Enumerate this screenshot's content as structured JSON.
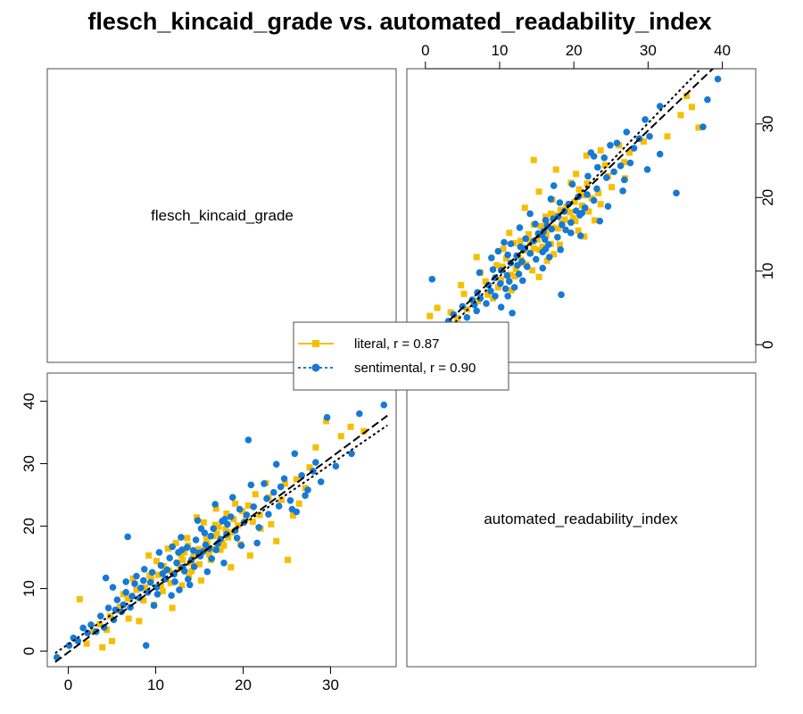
{
  "chart_data": {
    "type": "scatter",
    "title": "flesch_kincaid_grade vs. automated_readability_index",
    "variables": [
      "flesch_kincaid_grade",
      "automated_readability_index"
    ],
    "axes": {
      "flesch_kincaid_grade": {
        "ticks": [
          0,
          10,
          20,
          30
        ],
        "range": [
          -2.4,
          37.5
        ]
      },
      "automated_readability_index": {
        "ticks": [
          0,
          10,
          20,
          30,
          40
        ],
        "range": [
          -2.5,
          44.5
        ]
      }
    },
    "legend": {
      "placement": "center",
      "entries": [
        {
          "label": "literal, r = 0.87",
          "color": "#F7BE00",
          "marker": "square",
          "line": "solid"
        },
        {
          "label": "sentimental, r = 0.90",
          "color": "#1679D6",
          "marker": "circle",
          "line": "dotted"
        }
      ]
    },
    "series": [
      {
        "name": "literal, r = 0.87",
        "color": "#F7BE00",
        "marker": "square",
        "fit": {
          "slope": 1.038,
          "intercept": -0.2
        },
        "points": [
          [
            1.3,
            8.3
          ],
          [
            2.1,
            1.2
          ],
          [
            3.9,
            0.6
          ],
          [
            4.4,
            3.4
          ],
          [
            5.0,
            1.6
          ],
          [
            5.6,
            6.5
          ],
          [
            6.3,
            9.1
          ],
          [
            6.9,
            5.2
          ],
          [
            7.4,
            11.6
          ],
          [
            8.1,
            4.8
          ],
          [
            8.6,
            8.1
          ],
          [
            9.2,
            15.3
          ],
          [
            9.8,
            7.4
          ],
          [
            10.3,
            12.2
          ],
          [
            10.8,
            9.6
          ],
          [
            11.4,
            16.4
          ],
          [
            11.9,
            6.9
          ],
          [
            12.5,
            14.2
          ],
          [
            13.0,
            10.5
          ],
          [
            13.6,
            18.1
          ],
          [
            14.1,
            12.8
          ],
          [
            14.7,
            21.4
          ],
          [
            15.2,
            11.3
          ],
          [
            15.8,
            17.9
          ],
          [
            16.3,
            14.6
          ],
          [
            16.9,
            22.8
          ],
          [
            17.4,
            16.2
          ],
          [
            18.0,
            19.5
          ],
          [
            18.6,
            13.4
          ],
          [
            19.1,
            23.6
          ],
          [
            19.7,
            17.1
          ],
          [
            20.3,
            21.2
          ],
          [
            20.8,
            15.3
          ],
          [
            21.4,
            25.1
          ],
          [
            22.0,
            19.6
          ],
          [
            22.6,
            26.9
          ],
          [
            23.2,
            20.3
          ],
          [
            23.8,
            17.6
          ],
          [
            24.4,
            24.2
          ],
          [
            25.1,
            14.6
          ],
          [
            25.7,
            21.7
          ],
          [
            26.4,
            23.6
          ],
          [
            27.1,
            26.1
          ],
          [
            28.3,
            32.6
          ],
          [
            29.5,
            36.8
          ],
          [
            31.2,
            34.4
          ],
          [
            32.3,
            35.9
          ],
          [
            33.8,
            35.2
          ],
          [
            10.1,
            14.4
          ],
          [
            11.7,
            10.9
          ],
          [
            12.3,
            17.3
          ],
          [
            13.3,
            15.8
          ],
          [
            14.4,
            13.7
          ],
          [
            15.5,
            20.6
          ],
          [
            16.6,
            18.4
          ],
          [
            17.8,
            16.9
          ],
          [
            18.9,
            21.1
          ],
          [
            12.8,
            13.2
          ],
          [
            13.8,
            11.9
          ],
          [
            14.9,
            16.3
          ],
          [
            16.1,
            15.5
          ],
          [
            17.2,
            19.9
          ],
          [
            18.3,
            18.2
          ],
          [
            19.4,
            20.1
          ],
          [
            11.1,
            13.1
          ],
          [
            9.5,
            11.5
          ],
          [
            8.8,
            10.2
          ],
          [
            7.8,
            9.8
          ],
          [
            6.8,
            8.4
          ],
          [
            5.9,
            7.1
          ],
          [
            4.8,
            5.6
          ],
          [
            3.6,
            4.3
          ],
          [
            2.9,
            3.2
          ],
          [
            20.6,
            23.3
          ],
          [
            21.9,
            21.8
          ],
          [
            22.9,
            24.6
          ],
          [
            24.8,
            26.8
          ],
          [
            26.1,
            27.5
          ],
          [
            27.6,
            29.4
          ],
          [
            15.9,
            17.2
          ],
          [
            17.0,
            18.8
          ],
          [
            12.1,
            12.5
          ],
          [
            14.3,
            15.1
          ],
          [
            16.5,
            16.3
          ],
          [
            18.7,
            19.0
          ],
          [
            13.1,
            14.6
          ],
          [
            11.5,
            12.9
          ],
          [
            10.6,
            10.4
          ],
          [
            9.3,
            12.1
          ],
          [
            19.9,
            22.4
          ],
          [
            21.1,
            20.7
          ],
          [
            15.4,
            16.1
          ],
          [
            14.0,
            14.1
          ],
          [
            12.9,
            15.4
          ],
          [
            17.6,
            17.3
          ],
          [
            16.8,
            20.2
          ],
          [
            10.9,
            13.6
          ],
          [
            13.7,
            16.9
          ],
          [
            15.0,
            13.9
          ],
          [
            18.1,
            22.0
          ]
        ]
      },
      {
        "name": "sentimental, r = 0.90",
        "color": "#1679D6",
        "marker": "circle",
        "fit": {
          "slope": 0.96,
          "intercept": 1.1
        },
        "points": [
          [
            -1.3,
            -1.0
          ],
          [
            0.1,
            0.9
          ],
          [
            0.6,
            2.1
          ],
          [
            1.1,
            1.6
          ],
          [
            1.7,
            3.7
          ],
          [
            2.2,
            2.9
          ],
          [
            2.6,
            4.2
          ],
          [
            3.2,
            3.1
          ],
          [
            3.7,
            5.6
          ],
          [
            4.1,
            3.8
          ],
          [
            4.6,
            6.9
          ],
          [
            5.2,
            5.0
          ],
          [
            5.6,
            8.2
          ],
          [
            6.1,
            6.3
          ],
          [
            6.6,
            9.4
          ],
          [
            7.1,
            7.0
          ],
          [
            7.6,
            10.8
          ],
          [
            8.1,
            8.5
          ],
          [
            8.6,
            11.3
          ],
          [
            9.1,
            9.4
          ],
          [
            9.6,
            12.6
          ],
          [
            10.1,
            10.2
          ],
          [
            10.6,
            13.7
          ],
          [
            11.1,
            11.5
          ],
          [
            11.6,
            14.9
          ],
          [
            12.1,
            12.3
          ],
          [
            12.6,
            15.8
          ],
          [
            13.1,
            13.4
          ],
          [
            13.6,
            16.6
          ],
          [
            14.1,
            14.6
          ],
          [
            14.6,
            17.8
          ],
          [
            15.1,
            15.2
          ],
          [
            15.6,
            18.9
          ],
          [
            16.1,
            16.4
          ],
          [
            16.6,
            19.6
          ],
          [
            17.1,
            17.2
          ],
          [
            17.6,
            20.8
          ],
          [
            18.1,
            18.7
          ],
          [
            18.6,
            21.5
          ],
          [
            19.1,
            19.3
          ],
          [
            19.6,
            22.7
          ],
          [
            20.1,
            20.6
          ],
          [
            20.6,
            33.8
          ],
          [
            21.2,
            23.1
          ],
          [
            21.8,
            19.8
          ],
          [
            22.4,
            26.8
          ],
          [
            22.9,
            21.9
          ],
          [
            23.5,
            25.4
          ],
          [
            24.1,
            23.2
          ],
          [
            24.7,
            27.6
          ],
          [
            25.4,
            24.1
          ],
          [
            26.1,
            22.3
          ],
          [
            26.7,
            28.1
          ],
          [
            27.4,
            25.8
          ],
          [
            28.3,
            30.2
          ],
          [
            28.9,
            27.1
          ],
          [
            29.6,
            37.4
          ],
          [
            30.6,
            29.6
          ],
          [
            32.4,
            31.6
          ],
          [
            33.3,
            38.0
          ],
          [
            36.1,
            39.4
          ],
          [
            6.8,
            18.3
          ],
          [
            8.9,
            0.9
          ],
          [
            5.1,
            10.2
          ],
          [
            4.3,
            11.7
          ],
          [
            9.8,
            7.3
          ],
          [
            10.4,
            15.8
          ],
          [
            11.8,
            8.9
          ],
          [
            12.9,
            18.2
          ],
          [
            13.9,
            10.6
          ],
          [
            14.8,
            20.9
          ],
          [
            15.9,
            12.7
          ],
          [
            16.8,
            23.5
          ],
          [
            17.8,
            14.1
          ],
          [
            18.8,
            24.6
          ],
          [
            19.8,
            16.9
          ],
          [
            20.9,
            26.6
          ],
          [
            21.6,
            17.3
          ],
          [
            23.8,
            29.9
          ],
          [
            25.9,
            31.6
          ],
          [
            11.3,
            13.0
          ],
          [
            12.4,
            14.1
          ],
          [
            13.3,
            12.8
          ],
          [
            14.3,
            16.1
          ],
          [
            15.4,
            15.9
          ],
          [
            16.3,
            18.4
          ],
          [
            17.4,
            17.9
          ],
          [
            12.2,
            11.1
          ],
          [
            10.8,
            12.4
          ],
          [
            9.4,
            11.0
          ],
          [
            8.3,
            10.1
          ],
          [
            7.3,
            8.8
          ],
          [
            6.3,
            7.4
          ],
          [
            5.4,
            6.6
          ],
          [
            14.4,
            13.5
          ],
          [
            15.7,
            17.0
          ],
          [
            16.9,
            16.2
          ],
          [
            18.2,
            20.3
          ],
          [
            19.3,
            18.1
          ],
          [
            20.4,
            21.8
          ],
          [
            11.9,
            16.7
          ],
          [
            13.7,
            11.5
          ],
          [
            8.7,
            13.1
          ],
          [
            7.8,
            12.0
          ],
          [
            6.6,
            11.1
          ],
          [
            22.7,
            24.4
          ],
          [
            24.3,
            26.3
          ],
          [
            25.6,
            22.7
          ],
          [
            27.1,
            24.9
          ],
          [
            28.0,
            28.8
          ],
          [
            14.9,
            15.7
          ],
          [
            16.4,
            14.8
          ],
          [
            17.9,
            21.1
          ],
          [
            13.0,
            16.2
          ],
          [
            12.7,
            9.8
          ],
          [
            15.2,
            19.6
          ],
          [
            10.2,
            9.1
          ]
        ]
      }
    ]
  }
}
